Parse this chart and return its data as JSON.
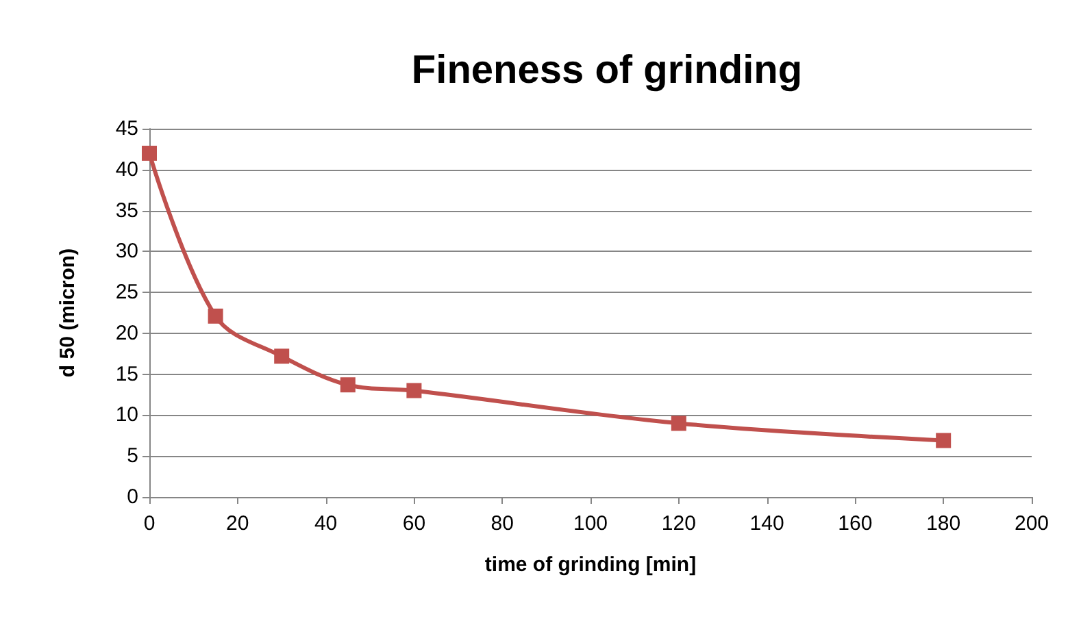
{
  "chart_data": {
    "type": "line",
    "title": "Fineness of grinding",
    "xlabel": "time of grinding [min]",
    "ylabel": "d 50 (micron)",
    "x": [
      0,
      15,
      30,
      45,
      60,
      120,
      180
    ],
    "series": [
      {
        "color": "#c0504d",
        "values": [
          42,
          22.1,
          17.2,
          13.7,
          13.0,
          9.0,
          6.9
        ]
      }
    ],
    "xlim": [
      0,
      200
    ],
    "xticks": [
      0,
      20,
      40,
      60,
      80,
      100,
      120,
      140,
      160,
      180,
      200
    ],
    "ylim": [
      0,
      45
    ],
    "yticks": [
      0,
      5,
      10,
      15,
      20,
      25,
      30,
      35,
      40,
      45
    ],
    "grid": "y",
    "marker": "square",
    "line_style": "solid"
  }
}
